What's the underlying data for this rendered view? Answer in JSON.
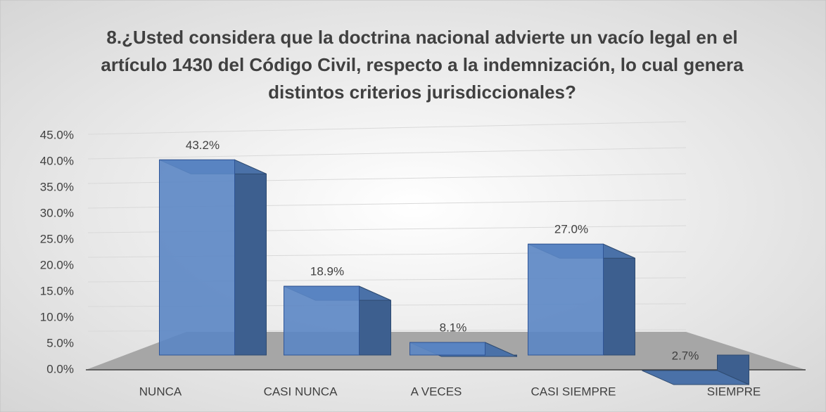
{
  "chart_data": {
    "type": "bar3d",
    "title": "8.¿Usted considera que la doctrina nacional advierte un vacío legal en el artículo 1430 del Código Civil, respecto a la indemnización, lo cual genera distintos criterios jurisdiccionales?",
    "categories": [
      "NUNCA",
      "CASI NUNCA",
      "A VECES",
      "CASI SIEMPRE",
      "SIEMPRE"
    ],
    "values": [
      43.2,
      18.9,
      8.1,
      27.0,
      2.7
    ],
    "value_labels": [
      "43.2%",
      "18.9%",
      "8.1%",
      "27.0%",
      "2.7%"
    ],
    "color": "#5b86c4",
    "ylim": [
      0,
      45
    ],
    "yticks": [
      {
        "value": 0,
        "label": "0.0%"
      },
      {
        "value": 5,
        "label": "5.0%"
      },
      {
        "value": 10,
        "label": "10.0%"
      },
      {
        "value": 15,
        "label": "15.0%"
      },
      {
        "value": 20,
        "label": "20.0%"
      },
      {
        "value": 25,
        "label": "25.0%"
      },
      {
        "value": 30,
        "label": "30.0%"
      },
      {
        "value": 35,
        "label": "35.0%"
      },
      {
        "value": 40,
        "label": "40.0%"
      },
      {
        "value": 45,
        "label": "45.0%"
      }
    ],
    "grid": true
  }
}
